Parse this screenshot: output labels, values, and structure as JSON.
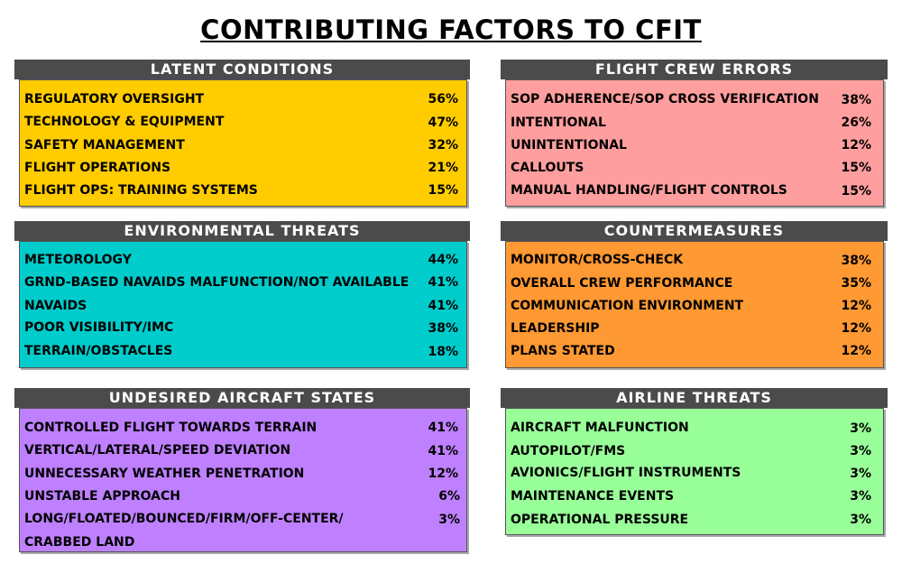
{
  "title": "CONTRIBUTING FACTORS TO CFIT",
  "colors": {
    "header_bg": "#4b4b4b",
    "latent": "#ffcc00",
    "crew": "#ff9e9e",
    "env": "#00cccc",
    "counter": "#ff9933",
    "undesired": "#bf80ff",
    "airline": "#99ff99"
  },
  "panels": {
    "latent": {
      "header": "LATENT CONDITIONS",
      "items": [
        {
          "label": "REGULATORY OVERSIGHT",
          "value": "56%"
        },
        {
          "label": "TECHNOLOGY & EQUIPMENT",
          "value": "47%"
        },
        {
          "label": "SAFETY MANAGEMENT",
          "value": "32%"
        },
        {
          "label": "FLIGHT OPERATIONS",
          "value": "21%"
        },
        {
          "label": "FLIGHT OPS: TRAINING SYSTEMS",
          "value": "15%"
        }
      ]
    },
    "crew": {
      "header": "FLIGHT CREW ERRORS",
      "items": [
        {
          "label": "SOP ADHERENCE/SOP CROSS VERIFICATION",
          "value": "38%"
        },
        {
          "label": "INTENTIONAL",
          "value": "26%"
        },
        {
          "label": "UNINTENTIONAL",
          "value": "12%"
        },
        {
          "label": "CALLOUTS",
          "value": "15%"
        },
        {
          "label": "MANUAL HANDLING/FLIGHT CONTROLS",
          "value": "15%"
        }
      ]
    },
    "env": {
      "header": "ENVIRONMENTAL THREATS",
      "items": [
        {
          "label": "METEOROLOGY",
          "value": "44%"
        },
        {
          "label": "GRND-BASED NAVAIDS MALFUNCTION/NOT AVAILABLE",
          "value": "41%"
        },
        {
          "label": "NAVAIDS",
          "value": "41%"
        },
        {
          "label": "POOR VISIBILITY/IMC",
          "value": "38%"
        },
        {
          "label": "TERRAIN/OBSTACLES",
          "value": "18%"
        }
      ]
    },
    "counter": {
      "header": "COUNTERMEASURES",
      "items": [
        {
          "label": "MONITOR/CROSS-CHECK",
          "value": "38%"
        },
        {
          "label": "OVERALL CREW PERFORMANCE",
          "value": "35%"
        },
        {
          "label": "COMMUNICATION ENVIRONMENT",
          "value": "12%"
        },
        {
          "label": "LEADERSHIP",
          "value": "12%"
        },
        {
          "label": "PLANS STATED",
          "value": "12%"
        }
      ]
    },
    "undesired": {
      "header": "UNDESIRED AIRCRAFT STATES",
      "items": [
        {
          "label": "CONTROLLED FLIGHT TOWARDS TERRAIN",
          "value": "41%"
        },
        {
          "label": "VERTICAL/LATERAL/SPEED DEVIATION",
          "value": "41%"
        },
        {
          "label": "UNNECESSARY WEATHER PENETRATION",
          "value": "12%"
        },
        {
          "label": "UNSTABLE APPROACH",
          "value": "6%"
        },
        {
          "label": "LONG/FLOATED/BOUNCED/FIRM/OFF-CENTER/",
          "value": "3%"
        }
      ],
      "extra_line": "CRABBED LAND"
    },
    "airline": {
      "header": "AIRLINE THREATS",
      "items": [
        {
          "label": "AIRCRAFT MALFUNCTION",
          "value": "3%"
        },
        {
          "label": "AUTOPILOT/FMS",
          "value": "3%"
        },
        {
          "label": "AVIONICS/FLIGHT INSTRUMENTS",
          "value": "3%"
        },
        {
          "label": "MAINTENANCE EVENTS",
          "value": "3%"
        },
        {
          "label": "OPERATIONAL PRESSURE",
          "value": "3%"
        }
      ]
    }
  }
}
